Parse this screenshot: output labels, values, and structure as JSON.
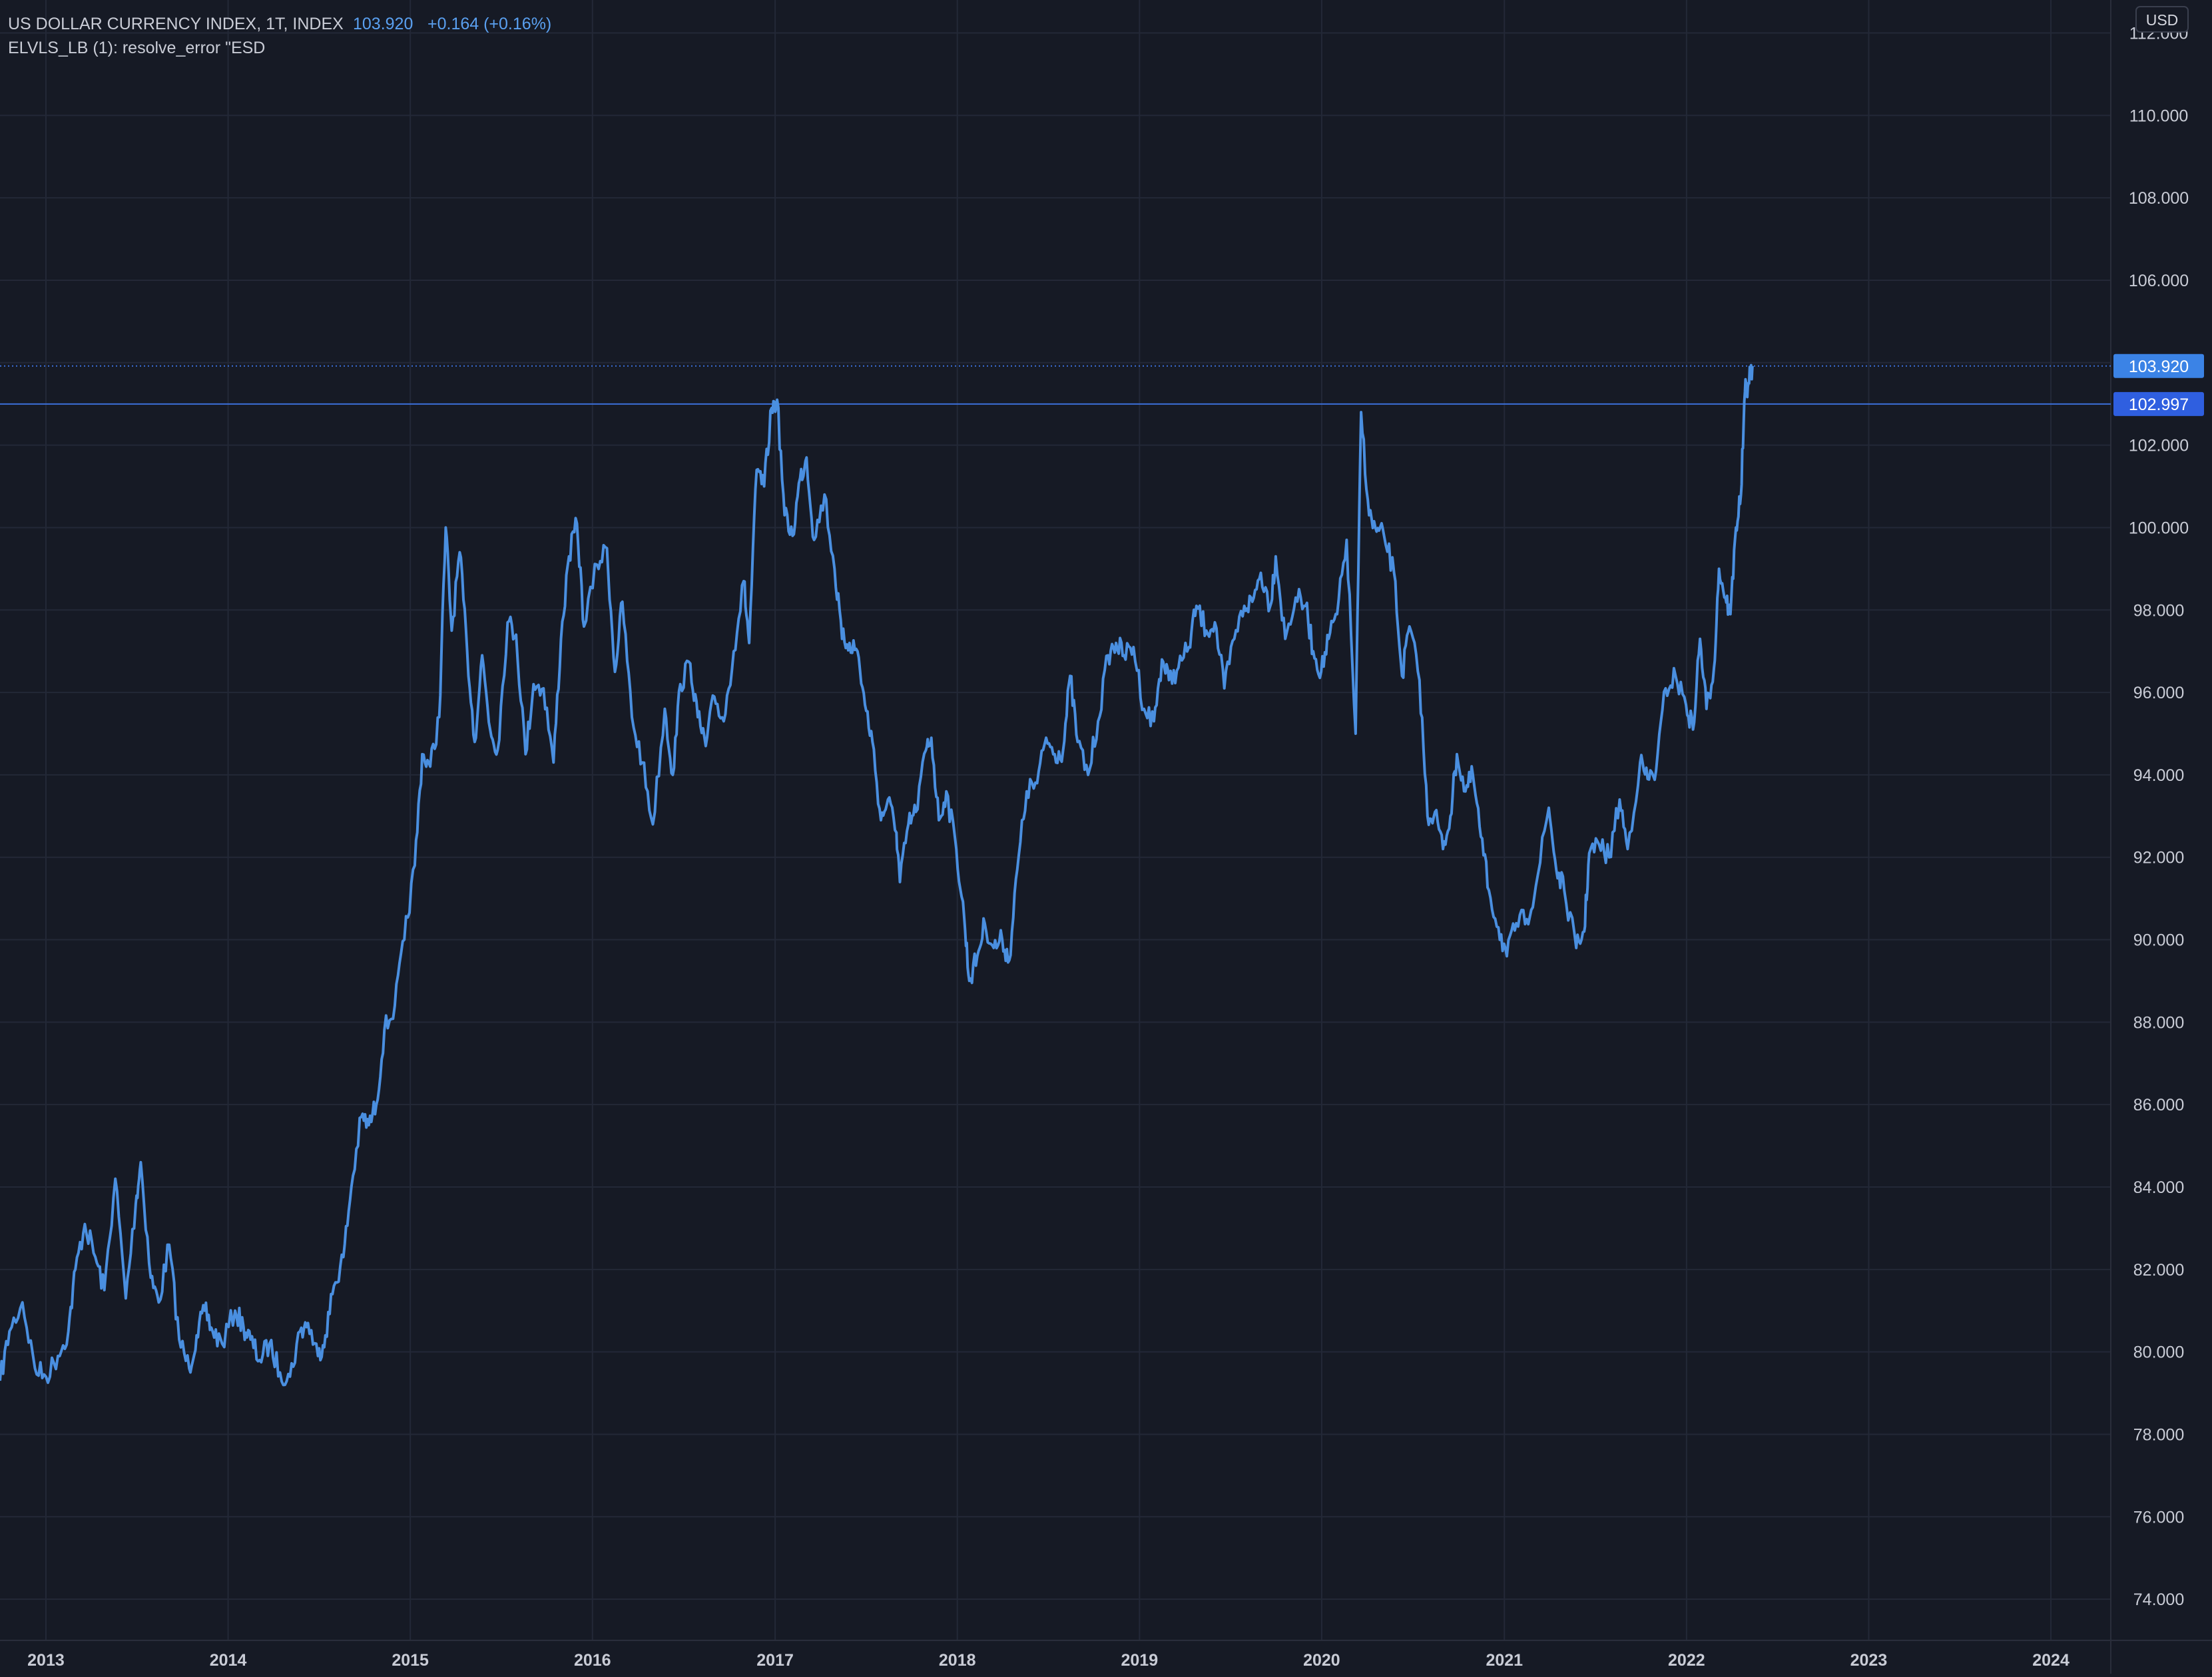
{
  "header": {
    "symbol": "US DOLLAR CURRENCY INDEX, 1T, INDEX",
    "last_price": "103.920",
    "change": "+0.164 (+0.16%)",
    "indicator_line": "ELVLS_LB (1): resolve_error \"ESD"
  },
  "currency_button": "USD",
  "colors": {
    "background": "#161a25",
    "grid": "#232837",
    "series_line": "#4a8fe0",
    "level_line": "#3b6fd9",
    "price_tag": "#3b83e6",
    "level_tag": "#2f5fe0",
    "text": "#c9ccd6",
    "accent_text": "#5aa0f0"
  },
  "price_tags": {
    "last": "103.920",
    "level": "102.997"
  },
  "chart_data": {
    "type": "line",
    "title": "US DOLLAR CURRENCY INDEX, 1T, INDEX",
    "xlabel": "",
    "ylabel": "",
    "x_range": [
      "2012-10-01",
      "2024-04-30"
    ],
    "ylim": [
      73,
      112.8
    ],
    "y_ticks": [
      "74.000",
      "76.000",
      "78.000",
      "80.000",
      "82.000",
      "84.000",
      "86.000",
      "88.000",
      "90.000",
      "92.000",
      "94.000",
      "96.000",
      "98.000",
      "100.000",
      "102.000",
      "104.000",
      "106.000",
      "108.000",
      "110.000",
      "112.000"
    ],
    "x_ticks": [
      {
        "label": "2013",
        "date": "2013-01-01"
      },
      {
        "label": "2014",
        "date": "2014-01-01"
      },
      {
        "label": "2015",
        "date": "2015-01-01"
      },
      {
        "label": "2016",
        "date": "2016-01-01"
      },
      {
        "label": "2017",
        "date": "2017-01-01"
      },
      {
        "label": "2018",
        "date": "2018-01-01"
      },
      {
        "label": "2019",
        "date": "2019-01-01"
      },
      {
        "label": "2020",
        "date": "2020-01-01"
      },
      {
        "label": "2021",
        "date": "2021-01-01"
      },
      {
        "label": "2022",
        "date": "2022-01-01"
      },
      {
        "label": "2023",
        "date": "2023-01-01"
      },
      {
        "label": "2024",
        "date": "2024-01-01"
      }
    ],
    "grid": true,
    "horizontal_levels": [
      {
        "value": 103.92,
        "style": "dotted"
      },
      {
        "value": 102.997,
        "style": "solid"
      }
    ],
    "series": [
      {
        "points": [
          [
            "2012-10-01",
            79.3
          ],
          [
            "2012-10-20",
            80.5
          ],
          [
            "2012-11-15",
            81.2
          ],
          [
            "2012-12-10",
            79.6
          ],
          [
            "2013-01-01",
            79.4
          ],
          [
            "2013-01-25",
            79.9
          ],
          [
            "2013-02-15",
            80.5
          ],
          [
            "2013-03-01",
            82.0
          ],
          [
            "2013-03-20",
            83.1
          ],
          [
            "2013-04-10",
            82.3
          ],
          [
            "2013-04-28",
            81.5
          ],
          [
            "2013-05-20",
            84.2
          ],
          [
            "2013-06-10",
            81.3
          ],
          [
            "2013-06-30",
            83.6
          ],
          [
            "2013-07-10",
            84.6
          ],
          [
            "2013-07-30",
            81.8
          ],
          [
            "2013-08-15",
            81.2
          ],
          [
            "2013-09-05",
            82.6
          ],
          [
            "2013-09-25",
            80.3
          ],
          [
            "2013-10-15",
            79.6
          ],
          [
            "2013-10-30",
            80.4
          ],
          [
            "2013-11-15",
            81.0
          ],
          [
            "2013-12-01",
            80.5
          ],
          [
            "2013-12-20",
            80.2
          ],
          [
            "2014-01-15",
            81.0
          ],
          [
            "2014-02-01",
            80.6
          ],
          [
            "2014-02-15",
            80.3
          ],
          [
            "2014-03-05",
            79.8
          ],
          [
            "2014-03-25",
            80.2
          ],
          [
            "2014-04-15",
            79.5
          ],
          [
            "2014-05-05",
            79.4
          ],
          [
            "2014-05-25",
            80.5
          ],
          [
            "2014-06-10",
            80.7
          ],
          [
            "2014-06-30",
            79.9
          ],
          [
            "2014-07-15",
            80.4
          ],
          [
            "2014-08-01",
            81.6
          ],
          [
            "2014-08-20",
            82.3
          ],
          [
            "2014-09-05",
            84.0
          ],
          [
            "2014-09-25",
            85.7
          ],
          [
            "2014-10-10",
            85.5
          ],
          [
            "2014-10-25",
            86.0
          ],
          [
            "2014-11-10",
            87.8
          ],
          [
            "2014-12-01",
            88.4
          ],
          [
            "2014-12-20",
            90.0
          ],
          [
            "2015-01-10",
            91.8
          ],
          [
            "2015-01-25",
            94.5
          ],
          [
            "2015-02-10",
            94.2
          ],
          [
            "2015-02-28",
            95.4
          ],
          [
            "2015-03-13",
            100.0
          ],
          [
            "2015-03-25",
            97.5
          ],
          [
            "2015-04-10",
            99.4
          ],
          [
            "2015-04-25",
            97.0
          ],
          [
            "2015-05-10",
            94.8
          ],
          [
            "2015-05-25",
            96.9
          ],
          [
            "2015-06-10",
            95.1
          ],
          [
            "2015-06-25",
            94.6
          ],
          [
            "2015-07-15",
            97.7
          ],
          [
            "2015-08-01",
            97.4
          ],
          [
            "2015-08-20",
            94.5
          ],
          [
            "2015-09-05",
            96.2
          ],
          [
            "2015-09-25",
            96.1
          ],
          [
            "2015-10-15",
            94.3
          ],
          [
            "2015-10-30",
            97.3
          ],
          [
            "2015-11-15",
            99.3
          ],
          [
            "2015-12-01",
            100.1
          ],
          [
            "2015-12-15",
            97.6
          ],
          [
            "2016-01-10",
            99.1
          ],
          [
            "2016-01-30",
            99.5
          ],
          [
            "2016-02-15",
            96.5
          ],
          [
            "2016-03-01",
            98.2
          ],
          [
            "2016-03-20",
            95.4
          ],
          [
            "2016-04-10",
            94.3
          ],
          [
            "2016-05-01",
            92.8
          ],
          [
            "2016-05-25",
            95.6
          ],
          [
            "2016-06-10",
            94.0
          ],
          [
            "2016-06-25",
            96.2
          ],
          [
            "2016-07-15",
            96.7
          ],
          [
            "2016-07-30",
            95.4
          ],
          [
            "2016-08-15",
            94.7
          ],
          [
            "2016-09-01",
            95.9
          ],
          [
            "2016-09-20",
            95.3
          ],
          [
            "2016-10-10",
            97.0
          ],
          [
            "2016-10-30",
            98.7
          ],
          [
            "2016-11-10",
            97.2
          ],
          [
            "2016-11-25",
            101.4
          ],
          [
            "2016-12-10",
            101.0
          ],
          [
            "2016-12-25",
            102.9
          ],
          [
            "2017-01-05",
            103.1
          ],
          [
            "2017-01-20",
            100.3
          ],
          [
            "2017-02-05",
            99.8
          ],
          [
            "2017-02-20",
            101.2
          ],
          [
            "2017-03-05",
            101.7
          ],
          [
            "2017-03-20",
            99.7
          ],
          [
            "2017-04-10",
            100.8
          ],
          [
            "2017-04-30",
            99.0
          ],
          [
            "2017-05-15",
            97.3
          ],
          [
            "2017-05-30",
            97.2
          ],
          [
            "2017-06-15",
            97.0
          ],
          [
            "2017-06-30",
            95.7
          ],
          [
            "2017-07-15",
            94.8
          ],
          [
            "2017-08-01",
            92.9
          ],
          [
            "2017-08-15",
            93.4
          ],
          [
            "2017-09-01",
            92.6
          ],
          [
            "2017-09-08",
            91.4
          ],
          [
            "2017-09-25",
            92.8
          ],
          [
            "2017-10-10",
            93.1
          ],
          [
            "2017-10-30",
            94.6
          ],
          [
            "2017-11-10",
            94.9
          ],
          [
            "2017-11-25",
            92.9
          ],
          [
            "2017-12-10",
            93.6
          ],
          [
            "2017-12-30",
            92.2
          ],
          [
            "2018-01-15",
            90.5
          ],
          [
            "2018-01-25",
            89.0
          ],
          [
            "2018-02-10",
            89.6
          ],
          [
            "2018-02-25",
            90.4
          ],
          [
            "2018-03-15",
            89.8
          ],
          [
            "2018-04-01",
            90.0
          ],
          [
            "2018-04-15",
            89.5
          ],
          [
            "2018-05-01",
            91.7
          ],
          [
            "2018-05-20",
            93.6
          ],
          [
            "2018-06-10",
            93.8
          ],
          [
            "2018-06-28",
            94.9
          ],
          [
            "2018-07-15",
            94.5
          ],
          [
            "2018-08-01",
            94.6
          ],
          [
            "2018-08-15",
            96.4
          ],
          [
            "2018-08-30",
            94.8
          ],
          [
            "2018-09-20",
            94.0
          ],
          [
            "2018-10-10",
            95.3
          ],
          [
            "2018-10-30",
            96.9
          ],
          [
            "2018-11-15",
            97.2
          ],
          [
            "2018-12-01",
            96.9
          ],
          [
            "2018-12-20",
            97.1
          ],
          [
            "2019-01-10",
            95.6
          ],
          [
            "2019-01-30",
            95.3
          ],
          [
            "2019-02-15",
            96.8
          ],
          [
            "2019-03-01",
            96.3
          ],
          [
            "2019-03-20",
            96.6
          ],
          [
            "2019-04-10",
            97.1
          ],
          [
            "2019-04-25",
            98.1
          ],
          [
            "2019-05-15",
            97.5
          ],
          [
            "2019-06-01",
            97.7
          ],
          [
            "2019-06-20",
            96.1
          ],
          [
            "2019-07-10",
            97.3
          ],
          [
            "2019-07-30",
            98.1
          ],
          [
            "2019-08-15",
            98.2
          ],
          [
            "2019-09-01",
            98.9
          ],
          [
            "2019-09-20",
            98.1
          ],
          [
            "2019-10-01",
            99.3
          ],
          [
            "2019-10-20",
            97.3
          ],
          [
            "2019-11-10",
            98.3
          ],
          [
            "2019-11-30",
            98.1
          ],
          [
            "2019-12-15",
            97.0
          ],
          [
            "2019-12-31",
            96.5
          ],
          [
            "2020-01-15",
            97.3
          ],
          [
            "2020-02-01",
            97.9
          ],
          [
            "2020-02-20",
            99.7
          ],
          [
            "2020-03-09",
            95.0
          ],
          [
            "2020-03-20",
            102.8
          ],
          [
            "2020-04-05",
            100.3
          ],
          [
            "2020-04-20",
            99.9
          ],
          [
            "2020-05-05",
            99.8
          ],
          [
            "2020-05-25",
            98.9
          ],
          [
            "2020-06-10",
            96.4
          ],
          [
            "2020-06-25",
            97.6
          ],
          [
            "2020-07-15",
            96.3
          ],
          [
            "2020-07-31",
            93.0
          ],
          [
            "2020-08-15",
            93.1
          ],
          [
            "2020-08-31",
            92.2
          ],
          [
            "2020-09-15",
            93.0
          ],
          [
            "2020-09-28",
            94.5
          ],
          [
            "2020-10-15",
            93.6
          ],
          [
            "2020-10-30",
            94.0
          ],
          [
            "2020-11-15",
            92.5
          ],
          [
            "2020-12-01",
            91.2
          ],
          [
            "2020-12-20",
            90.3
          ],
          [
            "2021-01-06",
            89.6
          ],
          [
            "2021-01-25",
            90.4
          ],
          [
            "2021-02-15",
            90.5
          ],
          [
            "2021-03-05",
            91.3
          ],
          [
            "2021-03-31",
            93.2
          ],
          [
            "2021-04-15",
            91.7
          ],
          [
            "2021-05-01",
            91.2
          ],
          [
            "2021-05-25",
            89.8
          ],
          [
            "2021-06-10",
            90.2
          ],
          [
            "2021-06-20",
            92.1
          ],
          [
            "2021-07-10",
            92.3
          ],
          [
            "2021-07-30",
            92.0
          ],
          [
            "2021-08-20",
            93.4
          ],
          [
            "2021-09-05",
            92.2
          ],
          [
            "2021-09-30",
            94.3
          ],
          [
            "2021-10-15",
            93.9
          ],
          [
            "2021-11-01",
            94.1
          ],
          [
            "2021-11-20",
            96.1
          ],
          [
            "2021-12-10",
            96.4
          ],
          [
            "2021-12-31",
            95.7
          ],
          [
            "2022-01-14",
            95.1
          ],
          [
            "2022-01-28",
            97.3
          ],
          [
            "2022-02-10",
            95.6
          ],
          [
            "2022-02-25",
            96.6
          ],
          [
            "2022-03-07",
            99.0
          ],
          [
            "2022-03-20",
            98.3
          ],
          [
            "2022-03-30",
            97.9
          ],
          [
            "2022-04-10",
            100.0
          ],
          [
            "2022-04-20",
            100.8
          ],
          [
            "2022-04-28",
            103.3
          ],
          [
            "2022-05-05",
            103.5
          ],
          [
            "2022-05-13",
            103.92
          ]
        ]
      }
    ]
  }
}
